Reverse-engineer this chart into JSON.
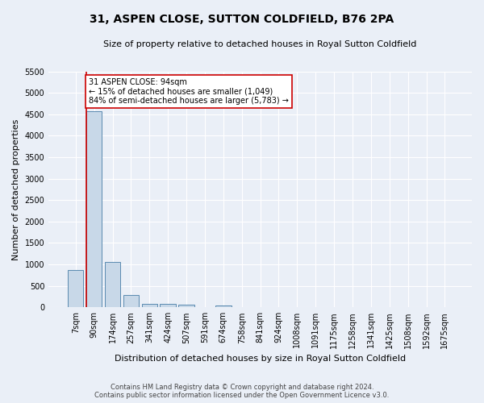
{
  "title": "31, ASPEN CLOSE, SUTTON COLDFIELD, B76 2PA",
  "subtitle": "Size of property relative to detached houses in Royal Sutton Coldfield",
  "xlabel": "Distribution of detached houses by size in Royal Sutton Coldfield",
  "ylabel": "Number of detached properties",
  "footer_line1": "Contains HM Land Registry data © Crown copyright and database right 2024.",
  "footer_line2": "Contains public sector information licensed under the Open Government Licence v3.0.",
  "bin_labels": [
    "7sqm",
    "90sqm",
    "174sqm",
    "257sqm",
    "341sqm",
    "424sqm",
    "507sqm",
    "591sqm",
    "674sqm",
    "758sqm",
    "841sqm",
    "924sqm",
    "1008sqm",
    "1091sqm",
    "1175sqm",
    "1258sqm",
    "1341sqm",
    "1425sqm",
    "1508sqm",
    "1592sqm",
    "1675sqm"
  ],
  "bar_heights": [
    870,
    4580,
    1060,
    290,
    90,
    80,
    55,
    0,
    45,
    0,
    0,
    0,
    0,
    0,
    0,
    0,
    0,
    0,
    0,
    0,
    0
  ],
  "bar_color": "#c8d8e8",
  "bar_edge_color": "#5a8ab0",
  "property_label": "31 ASPEN CLOSE: 94sqm",
  "annotation_line1": "← 15% of detached houses are smaller (1,049)",
  "annotation_line2": "84% of semi-detached houses are larger (5,783) →",
  "vline_color": "#cc0000",
  "vline_bin_index": 1,
  "bar_width": 0.85,
  "ylim": [
    0,
    5500
  ],
  "yticks": [
    0,
    500,
    1000,
    1500,
    2000,
    2500,
    3000,
    3500,
    4000,
    4500,
    5000,
    5500
  ],
  "bg_color": "#eaeff7",
  "plot_bg_color": "#eaeff7",
  "grid_color": "#ffffff",
  "annotation_box_color": "#ffffff",
  "annotation_box_edge": "#cc0000",
  "title_fontsize": 10,
  "subtitle_fontsize": 8,
  "ylabel_fontsize": 8,
  "xlabel_fontsize": 8,
  "tick_fontsize": 7,
  "footer_fontsize": 6,
  "annotation_fontsize": 7
}
